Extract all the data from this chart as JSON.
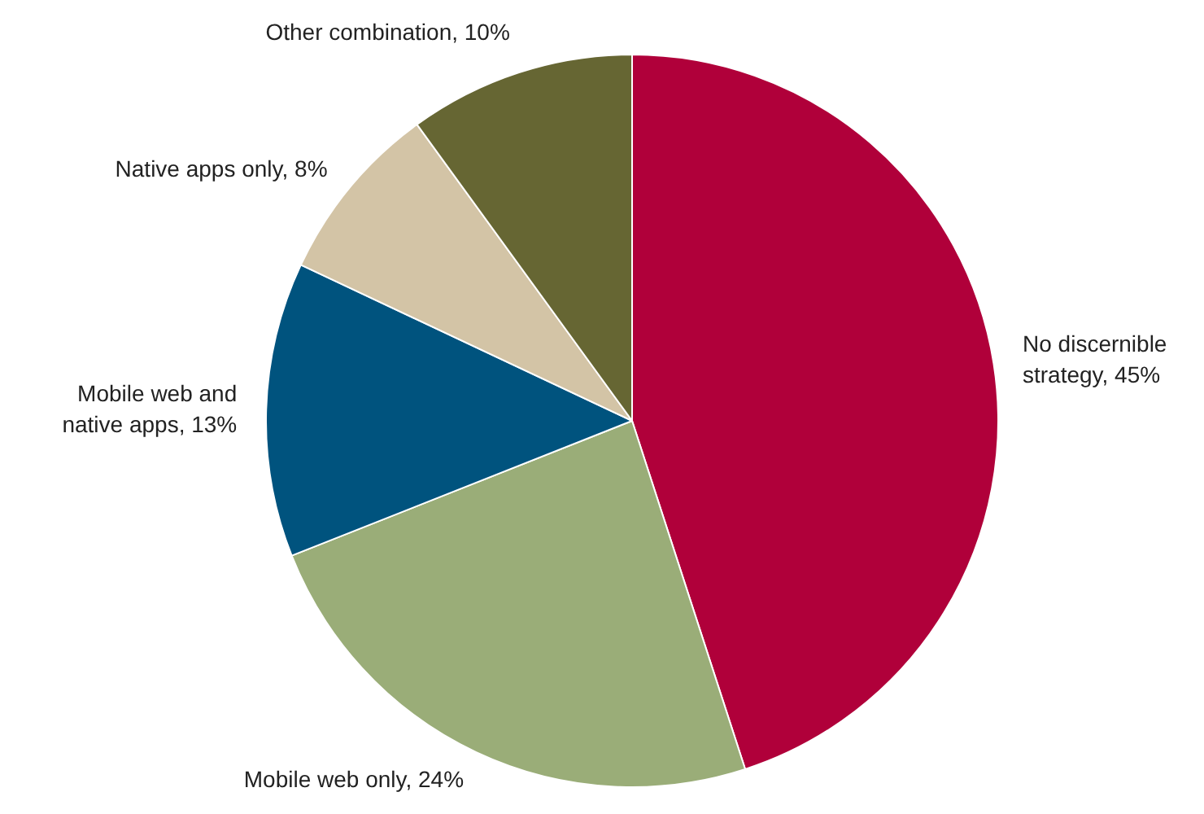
{
  "chart_data": {
    "type": "pie",
    "categories": [
      "No discernible strategy",
      "Mobile web only",
      "Mobile web and native apps",
      "Native apps only",
      "Other combination"
    ],
    "values": [
      45,
      24,
      13,
      8,
      10
    ],
    "colors": [
      "#b0003a",
      "#9aad78",
      "#00537e",
      "#d3c4a6",
      "#666633"
    ],
    "value_labels": [
      "45%",
      "24%",
      "13%",
      "8%",
      "10%"
    ]
  }
}
